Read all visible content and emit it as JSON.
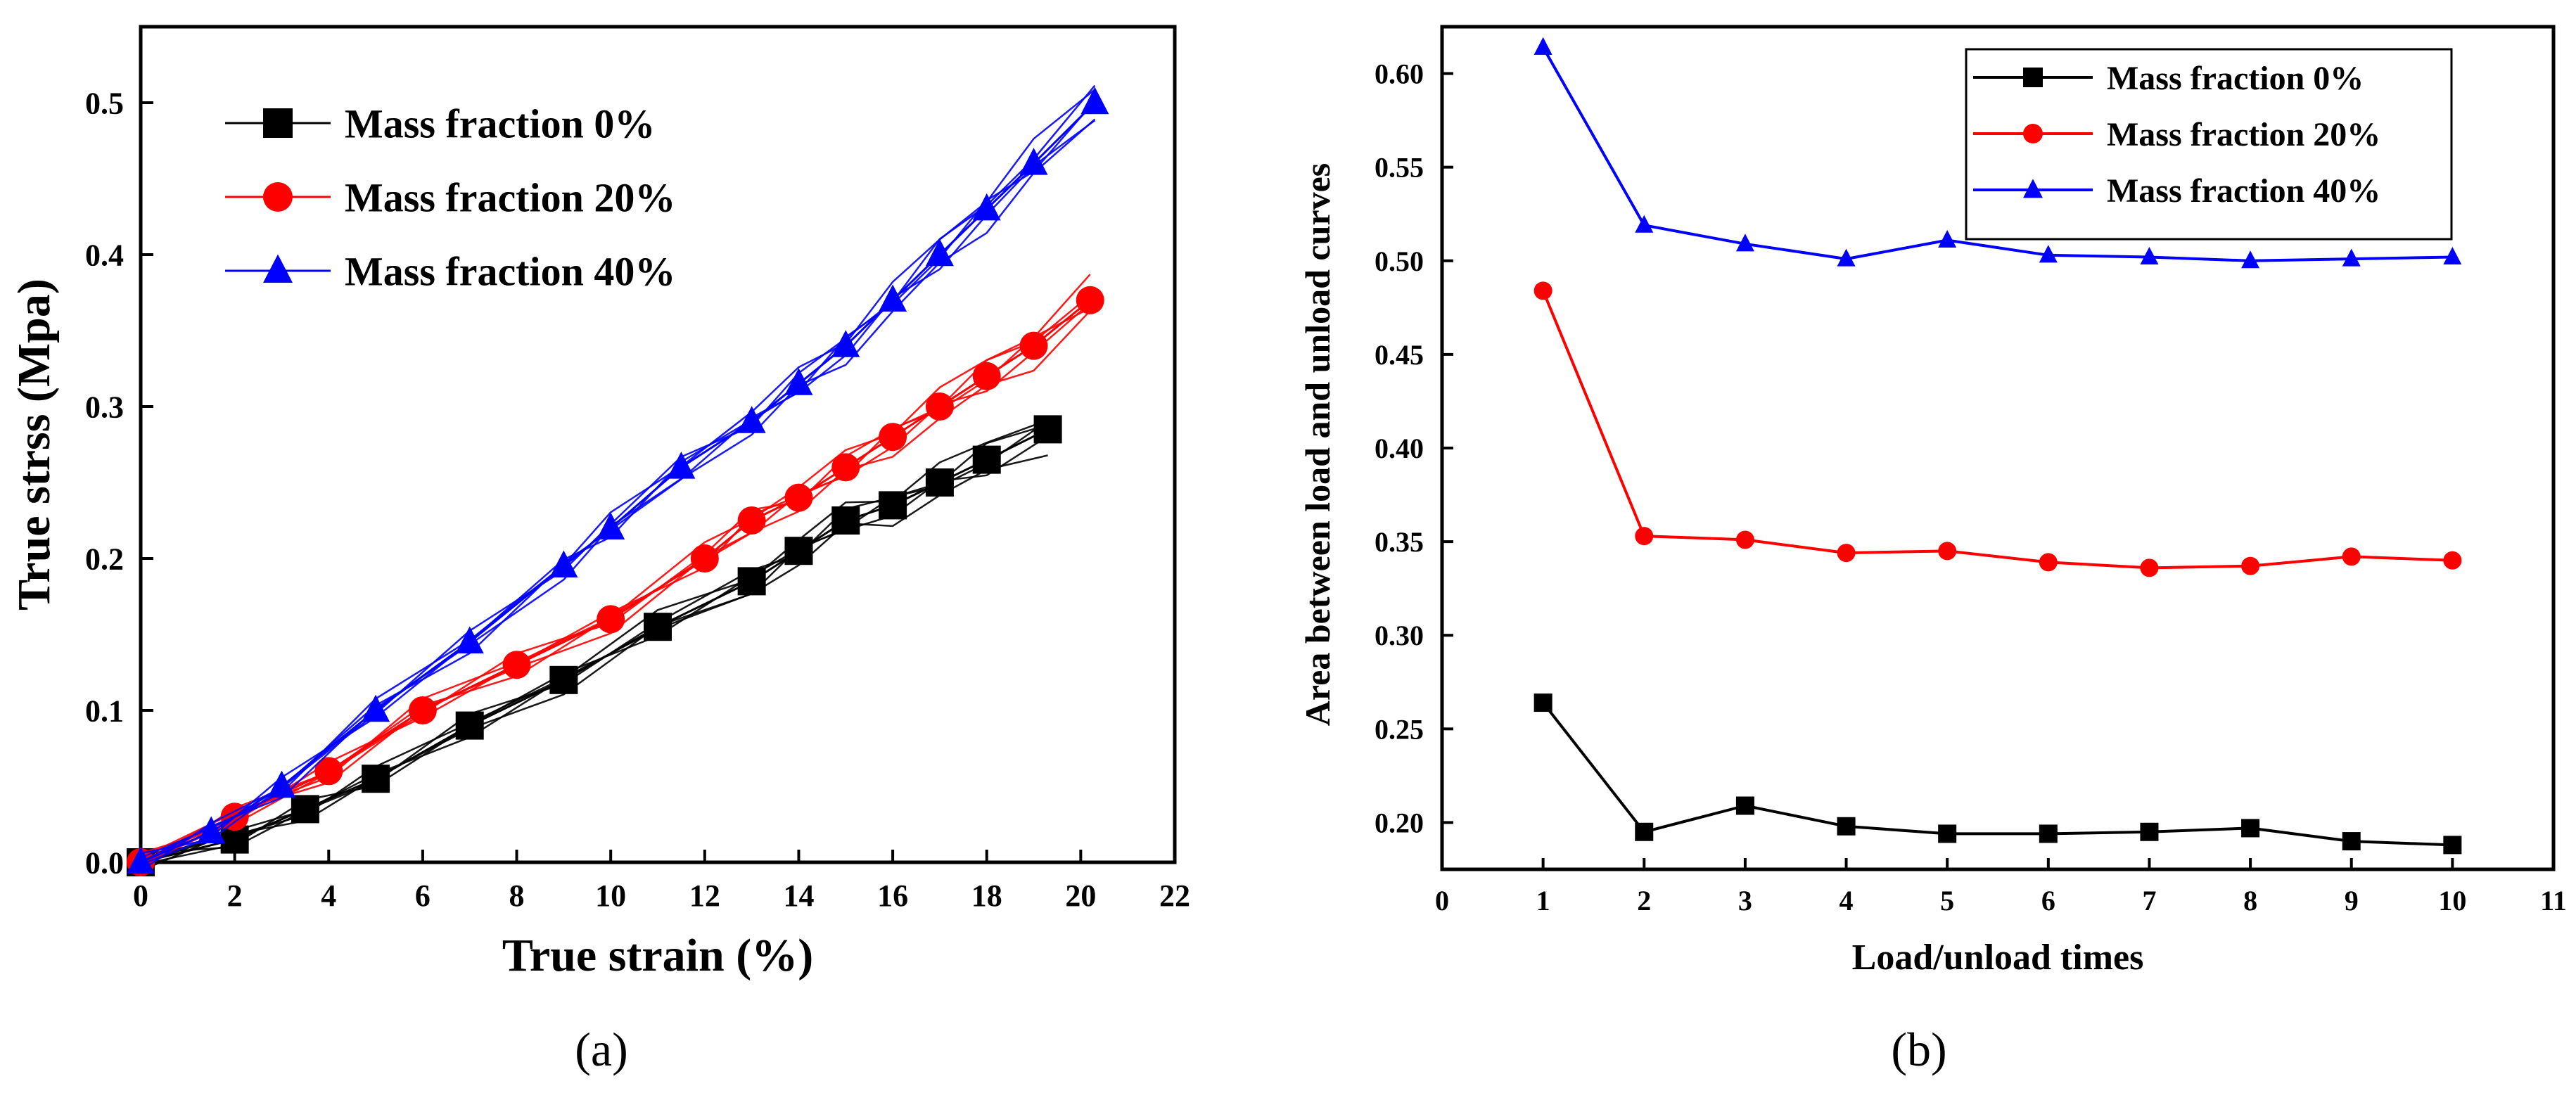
{
  "chart_data": [
    {
      "type": "line",
      "caption": "(a)",
      "xlabel": "True strain (%)",
      "ylabel": "True strss (Mpa)",
      "xlim": [
        0,
        22
      ],
      "ylim": [
        0,
        0.55
      ],
      "xticks": [
        0,
        2,
        4,
        6,
        8,
        10,
        12,
        14,
        16,
        18,
        20,
        22
      ],
      "yticks": [
        0.0,
        0.1,
        0.2,
        0.3,
        0.4,
        0.5
      ],
      "ytick_labels": [
        "0.0",
        "0.1",
        "0.2",
        "0.3",
        "0.4",
        "0.5"
      ],
      "legend": "top-left",
      "series": [
        {
          "name": "Mass fraction 0%",
          "color": "#000000",
          "marker": "square",
          "x": [
            0,
            2,
            3.5,
            5,
            7,
            9,
            11,
            13,
            14,
            15,
            16,
            17,
            18,
            19.3
          ],
          "y": [
            0,
            0.015,
            0.035,
            0.055,
            0.09,
            0.12,
            0.155,
            0.185,
            0.205,
            0.225,
            0.235,
            0.25,
            0.265,
            0.285
          ]
        },
        {
          "name": "Mass fraction 20%",
          "color": "#ff0000",
          "marker": "circle",
          "x": [
            0,
            2,
            4,
            6,
            8,
            10,
            12,
            13,
            14,
            15,
            16,
            17,
            18,
            19,
            20.2
          ],
          "y": [
            0,
            0.03,
            0.06,
            0.1,
            0.13,
            0.16,
            0.2,
            0.225,
            0.24,
            0.26,
            0.28,
            0.3,
            0.32,
            0.34,
            0.37
          ]
        },
        {
          "name": "Mass fraction 40%",
          "color": "#0000ff",
          "marker": "triangle",
          "x": [
            0,
            1.5,
            3,
            5,
            7,
            9,
            10,
            11.5,
            13,
            14,
            15,
            16,
            17,
            18,
            19,
            20.3
          ],
          "y": [
            0,
            0.02,
            0.05,
            0.1,
            0.145,
            0.195,
            0.22,
            0.26,
            0.29,
            0.315,
            0.34,
            0.37,
            0.4,
            0.43,
            0.46,
            0.5
          ]
        }
      ]
    },
    {
      "type": "line",
      "caption": "(b)",
      "xlabel": "Load/unload times",
      "ylabel": "Area between  load and unload curves",
      "xlim": [
        0,
        11
      ],
      "ylim": [
        0.175,
        0.625
      ],
      "xticks": [
        0,
        1,
        2,
        3,
        4,
        5,
        6,
        7,
        8,
        9,
        10,
        11
      ],
      "yticks": [
        0.2,
        0.25,
        0.3,
        0.35,
        0.4,
        0.45,
        0.5,
        0.55,
        0.6
      ],
      "ytick_labels": [
        "0.20",
        "0.25",
        "0.30",
        "0.35",
        "0.40",
        "0.45",
        "0.50",
        "0.55",
        "0.60"
      ],
      "legend": "top-right",
      "series": [
        {
          "name": "Mass fraction 0%",
          "color": "#000000",
          "marker": "square",
          "x": [
            1,
            2,
            3,
            4,
            5,
            6,
            7,
            8,
            9,
            10
          ],
          "y": [
            0.264,
            0.195,
            0.209,
            0.198,
            0.194,
            0.194,
            0.195,
            0.197,
            0.19,
            0.188
          ]
        },
        {
          "name": "Mass fraction 20%",
          "color": "#ff0000",
          "marker": "circle",
          "x": [
            1,
            2,
            3,
            4,
            5,
            6,
            7,
            8,
            9,
            10
          ],
          "y": [
            0.484,
            0.353,
            0.351,
            0.344,
            0.345,
            0.339,
            0.336,
            0.337,
            0.342,
            0.34
          ]
        },
        {
          "name": "Mass fraction 40%",
          "color": "#0000ff",
          "marker": "triangle",
          "x": [
            1,
            2,
            3,
            4,
            5,
            6,
            7,
            8,
            9,
            10
          ],
          "y": [
            0.614,
            0.519,
            0.509,
            0.501,
            0.511,
            0.503,
            0.502,
            0.5,
            0.501,
            0.502
          ]
        }
      ]
    }
  ]
}
